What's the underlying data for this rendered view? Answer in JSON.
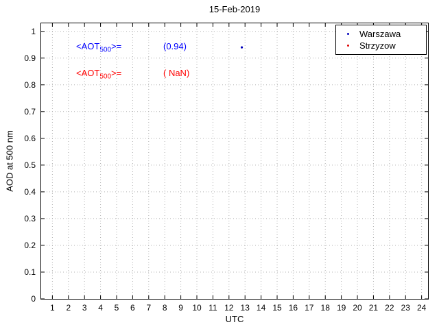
{
  "chart_data": {
    "type": "scatter",
    "title": "15-Feb-2019",
    "xlabel": "UTC",
    "ylabel": "AOD at 500 nm",
    "xlim": [
      0.3,
      24.4
    ],
    "ylim": [
      0,
      1.03
    ],
    "xticks": [
      1,
      2,
      3,
      4,
      5,
      6,
      7,
      8,
      9,
      10,
      11,
      12,
      13,
      14,
      15,
      16,
      17,
      18,
      19,
      20,
      21,
      22,
      23,
      24
    ],
    "yticks": [
      0,
      0.1,
      0.2,
      0.3,
      0.4,
      0.5,
      0.6,
      0.7,
      0.8,
      0.9,
      1
    ],
    "grid": true,
    "grid_color": "#b0b0b0",
    "axis_color": "#000000",
    "legend_position": "top-right",
    "series": [
      {
        "name": "Warszawa",
        "color": "#0000bb",
        "marker": "dot",
        "points": [
          [
            12.8,
            0.94
          ]
        ]
      },
      {
        "name": "Strzyzow",
        "color": "#dd0000",
        "marker": "dot",
        "points": []
      }
    ],
    "annotations": [
      {
        "prefix": "<AOT",
        "sub": "500",
        "suffix": ">=",
        "value": "(0.94)",
        "color": "#0000ff"
      },
      {
        "prefix": "<AOT",
        "sub": "500",
        "suffix": ">=",
        "value": "( NaN)",
        "color": "#ff0000"
      }
    ]
  }
}
